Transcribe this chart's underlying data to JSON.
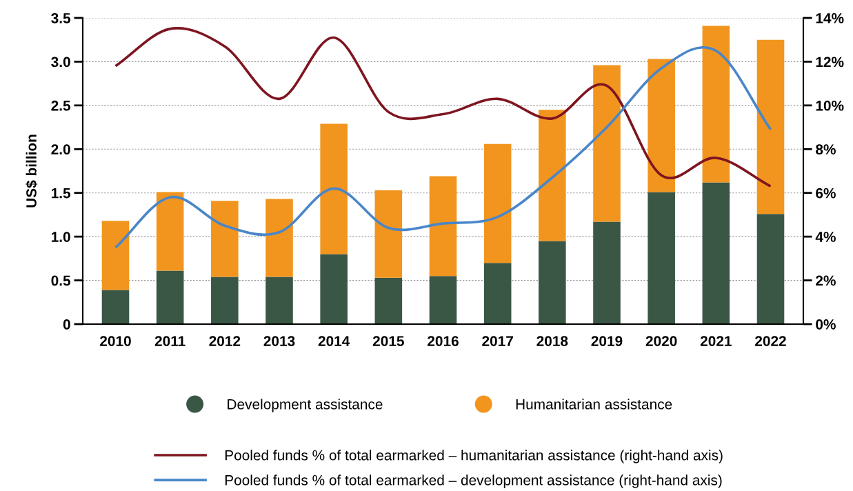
{
  "chart_data": {
    "type": "bar",
    "stacked": true,
    "ylabel": "US$ billion",
    "categories": [
      "2010",
      "2011",
      "2012",
      "2013",
      "2014",
      "2015",
      "2016",
      "2017",
      "2018",
      "2019",
      "2020",
      "2021",
      "2022"
    ],
    "series": [
      {
        "name": "Development assistance",
        "color": "#3a5745",
        "values": [
          0.39,
          0.61,
          0.54,
          0.54,
          0.8,
          0.53,
          0.55,
          0.7,
          0.95,
          1.17,
          1.51,
          1.62,
          1.26
        ]
      },
      {
        "name": "Humanitarian assistance",
        "color": "#f2951e",
        "values": [
          0.79,
          0.9,
          0.87,
          0.89,
          1.49,
          1.0,
          1.14,
          1.36,
          1.5,
          1.79,
          1.52,
          1.79,
          1.99
        ]
      },
      {
        "name": "Pooled funds % of total earmarked – humanitarian assistance (right-hand axis)",
        "type": "line",
        "axis": "y2",
        "color": "#7e1520",
        "values": [
          11.8,
          13.5,
          12.7,
          10.3,
          13.1,
          9.7,
          9.6,
          10.3,
          9.4,
          10.9,
          6.8,
          7.6,
          6.3
        ]
      },
      {
        "name": "Pooled funds % of total earmarked – development assistance (right-hand axis)",
        "type": "line",
        "axis": "y2",
        "color": "#4a86c8",
        "values": [
          3.5,
          5.8,
          4.5,
          4.2,
          6.2,
          4.4,
          4.6,
          4.9,
          6.7,
          9.0,
          11.7,
          12.5,
          8.9
        ]
      }
    ],
    "ylim": [
      0,
      3.5
    ],
    "yticks": [
      0,
      {
        "value": 0.5,
        "label": "0.5"
      },
      {
        "value": 1,
        "label": "1.0"
      },
      {
        "value": 1.5,
        "label": "1.5"
      },
      {
        "value": 2,
        "label": "2.0"
      },
      {
        "value": 2.5,
        "label": "2.5"
      },
      {
        "value": 3,
        "label": "3.0"
      },
      {
        "value": 3.5,
        "label": "3.5"
      }
    ],
    "y2lim": [
      0,
      14
    ],
    "y2ticks": [
      {
        "value": 0,
        "label": "0%"
      },
      {
        "value": 2,
        "label": "2%"
      },
      {
        "value": 4,
        "label": "4%"
      },
      {
        "value": 6,
        "label": "6%"
      },
      {
        "value": 8,
        "label": "8%"
      },
      {
        "value": 10,
        "label": "10%"
      },
      {
        "value": 12,
        "label": "12%"
      },
      {
        "value": 14,
        "label": "14%"
      }
    ],
    "grid": "y",
    "legend": "bottom",
    "marker": "none",
    "line_style": "solid"
  }
}
